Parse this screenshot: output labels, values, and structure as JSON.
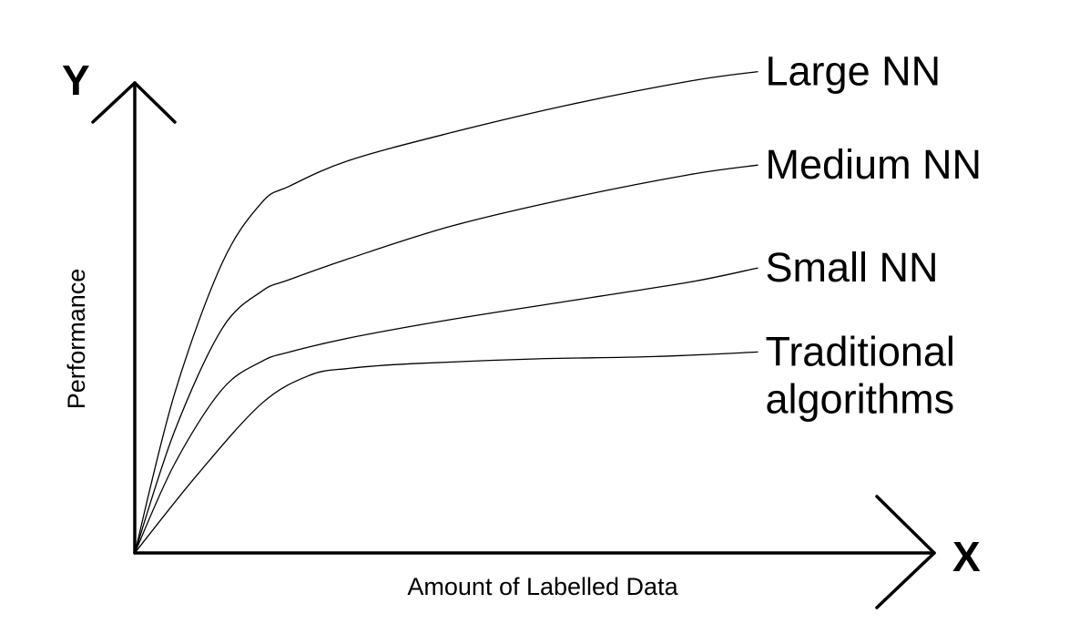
{
  "chart_data": {
    "type": "line",
    "title": "",
    "x_axis_letter": "X",
    "y_axis_letter": "Y",
    "xlabel": "Amount of Labelled Data",
    "ylabel": "Performance",
    "grid": false,
    "legend": "inline labels at right end of each line",
    "axis_color": "#000000",
    "line_color": "#000000",
    "xlim": [
      0,
      100
    ],
    "ylim": [
      0,
      100
    ],
    "series": [
      {
        "name": "Large NN",
        "x": [
          0,
          5,
          11,
          16,
          19.5,
          27,
          40,
          55,
          70,
          78.5
        ],
        "y": [
          0,
          34,
          62,
          75,
          78.5,
          84,
          90,
          96,
          101,
          103
        ]
      },
      {
        "name": "Medium NN",
        "x": [
          0,
          5,
          11,
          16,
          19.5,
          27,
          40,
          55,
          70,
          78.5
        ],
        "y": [
          0,
          26,
          48,
          56,
          58.5,
          63,
          70,
          76,
          81,
          83
        ]
      },
      {
        "name": "Small NN",
        "x": [
          0,
          5,
          11,
          16,
          19.5,
          27,
          40,
          55,
          70,
          78.5
        ],
        "y": [
          0,
          19,
          35,
          41,
          43,
          46,
          50,
          54,
          58,
          61
        ]
      },
      {
        "name": "Traditional algorithms",
        "x": [
          0,
          8,
          16,
          22,
          27,
          35,
          50,
          65,
          78.5
        ],
        "y": [
          0,
          17,
          32,
          38,
          39.5,
          40.5,
          41.5,
          42,
          43
        ]
      }
    ]
  }
}
